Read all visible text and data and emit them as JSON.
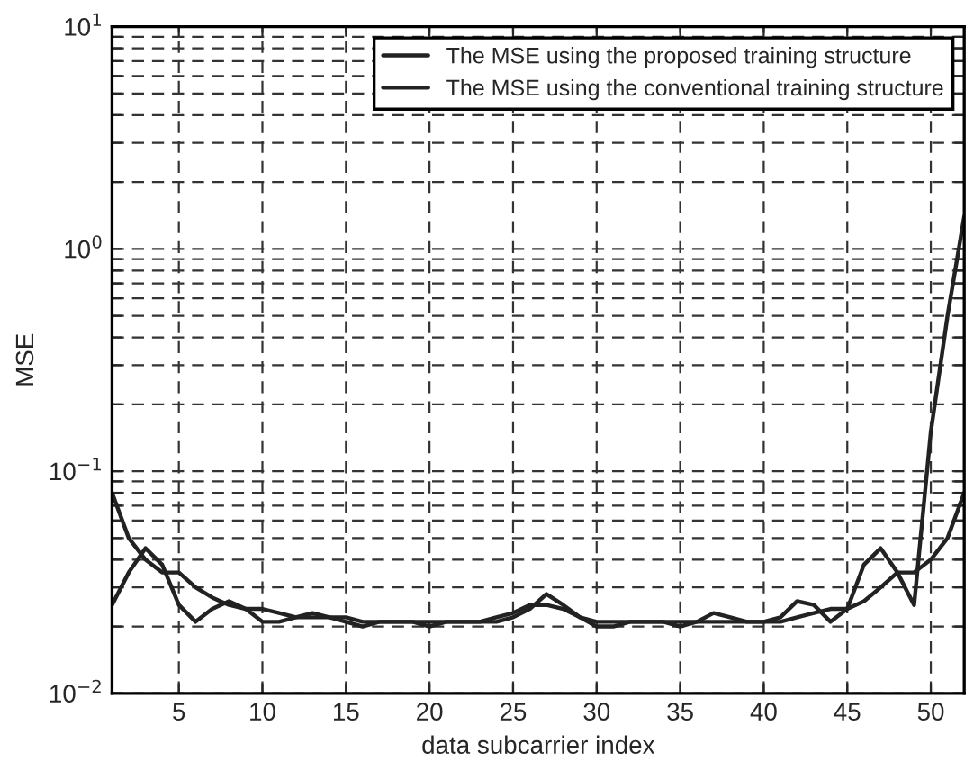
{
  "chart_data": {
    "type": "line",
    "xlabel": "data subcarrier index",
    "ylabel": "MSE",
    "x": [
      1,
      2,
      3,
      4,
      5,
      6,
      7,
      8,
      9,
      10,
      11,
      12,
      13,
      14,
      15,
      16,
      17,
      18,
      19,
      20,
      21,
      22,
      23,
      24,
      25,
      26,
      27,
      28,
      29,
      30,
      31,
      32,
      33,
      34,
      35,
      36,
      37,
      38,
      39,
      40,
      41,
      42,
      43,
      44,
      45,
      46,
      47,
      48,
      49,
      50,
      51,
      52
    ],
    "series": [
      {
        "name": "The MSE using the proposed training structure",
        "color": "#222222",
        "values": [
          0.08,
          0.05,
          0.04,
          0.035,
          0.035,
          0.03,
          0.027,
          0.025,
          0.024,
          0.024,
          0.023,
          0.022,
          0.022,
          0.022,
          0.022,
          0.021,
          0.021,
          0.021,
          0.021,
          0.021,
          0.021,
          0.021,
          0.021,
          0.022,
          0.023,
          0.025,
          0.025,
          0.024,
          0.022,
          0.021,
          0.021,
          0.021,
          0.021,
          0.021,
          0.021,
          0.021,
          0.021,
          0.021,
          0.021,
          0.021,
          0.021,
          0.022,
          0.023,
          0.024,
          0.024,
          0.026,
          0.03,
          0.035,
          0.035,
          0.04,
          0.05,
          0.08
        ]
      },
      {
        "name": "The MSE using the conventional training structure",
        "color": "#222222",
        "values": [
          0.025,
          0.035,
          0.045,
          0.038,
          0.025,
          0.021,
          0.024,
          0.026,
          0.024,
          0.021,
          0.021,
          0.022,
          0.023,
          0.022,
          0.021,
          0.02,
          0.021,
          0.021,
          0.021,
          0.02,
          0.021,
          0.021,
          0.021,
          0.021,
          0.022,
          0.024,
          0.028,
          0.025,
          0.022,
          0.02,
          0.02,
          0.021,
          0.021,
          0.021,
          0.02,
          0.021,
          0.023,
          0.022,
          0.021,
          0.021,
          0.022,
          0.026,
          0.025,
          0.021,
          0.024,
          0.038,
          0.045,
          0.035,
          0.025,
          0.15,
          0.5,
          1.4
        ]
      }
    ],
    "log": "y",
    "xlim": [
      1,
      52
    ],
    "xticks": [
      5,
      10,
      15,
      20,
      25,
      30,
      35,
      40,
      45,
      50
    ],
    "ylim": [
      0.01,
      10
    ],
    "yticks": [
      {
        "value": 0.01,
        "label": "10$^{−2}$"
      },
      {
        "value": 0.02,
        "label": null
      },
      {
        "value": 0.03,
        "label": null
      },
      {
        "value": 0.04,
        "label": null
      },
      {
        "value": 0.05,
        "label": null
      },
      {
        "value": 0.06,
        "label": null
      },
      {
        "value": 0.07,
        "label": null
      },
      {
        "value": 0.08,
        "label": null
      },
      {
        "value": 0.09,
        "label": null
      },
      {
        "value": 0.1,
        "label": "10$^{−1}$"
      },
      {
        "value": 0.2,
        "label": null
      },
      {
        "value": 0.3,
        "label": null
      },
      {
        "value": 0.4,
        "label": null
      },
      {
        "value": 0.5,
        "label": null
      },
      {
        "value": 0.6,
        "label": null
      },
      {
        "value": 0.7,
        "label": null
      },
      {
        "value": 0.8,
        "label": null
      },
      {
        "value": 0.9,
        "label": null
      },
      {
        "value": 1,
        "label": "10$^{0}$"
      },
      {
        "value": 2,
        "label": null
      },
      {
        "value": 3,
        "label": null
      },
      {
        "value": 4,
        "label": null
      },
      {
        "value": 5,
        "label": null
      },
      {
        "value": 6,
        "label": null
      },
      {
        "value": 7,
        "label": null
      },
      {
        "value": 8,
        "label": null
      },
      {
        "value": 9,
        "label": null
      },
      {
        "value": 10,
        "label": "10$^{1}$"
      }
    ],
    "grid": true,
    "legend": "top right",
    "line_style": "solid",
    "marker": "none"
  }
}
